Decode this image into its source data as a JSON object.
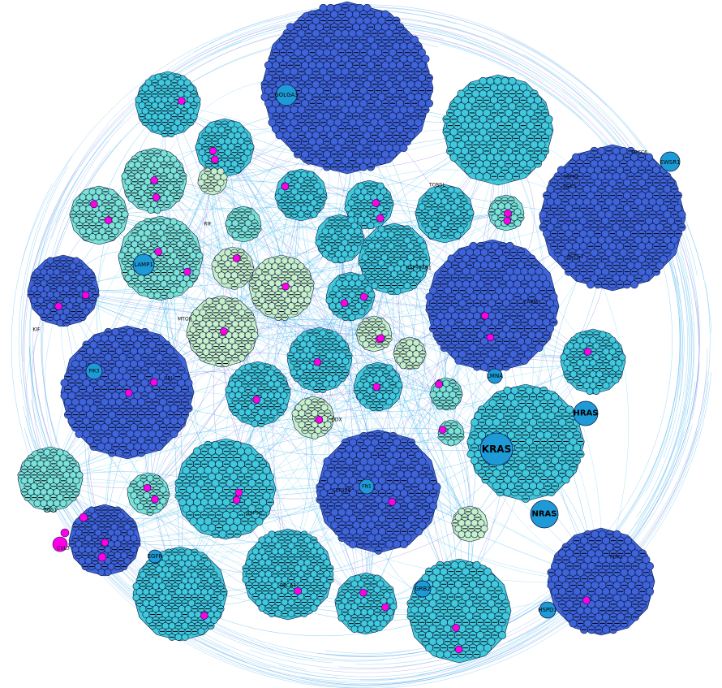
{
  "colors": {
    "edge_blue": "#2aa7e8",
    "edge_light": "#6fd0f0",
    "edge_purple": "#8a6fe0",
    "cluster_dark": "#3f63d8",
    "cluster_mid": "#40c9d8",
    "cluster_light": "#7be3d3",
    "cluster_pale": "#c8f0c8",
    "hub_node": "#1e9ad6",
    "highlight": "#ff00e6",
    "node_stroke": "#0a1a4a",
    "label": "#000000"
  },
  "labels": {
    "golga3": "GOLGA3",
    "ewsr1": "EWSR1",
    "lamp1": "LAMP1",
    "hras": "HRAS",
    "kras": "KRAS",
    "nras": "NRAS",
    "lmna": "LMNA",
    "hspd1": "HSPD1",
    "egfr": "EGFR",
    "grb2": "GRB2",
    "pik3": "PIK3",
    "hsp90": "HSP90",
    "pdk1": "PDK1",
    "carm": "CARM",
    "actg1": "ACTG1",
    "srpk2": "SRPK2",
    "tonsl": "TONSL",
    "cbl": "CBL",
    "kif": "KIF",
    "brca1": "BRCA1",
    "cep128": "CEP128",
    "fn1": "FN1",
    "hsp90ab1": "HSP90AB1",
    "ddx": "DDX",
    "ercc6": "ERCC6",
    "sgk3": "SGK3",
    "rif": "RIF",
    "mtor": "MTOR",
    "sos1": "SOS1",
    "cul3": "CUL3"
  }
}
